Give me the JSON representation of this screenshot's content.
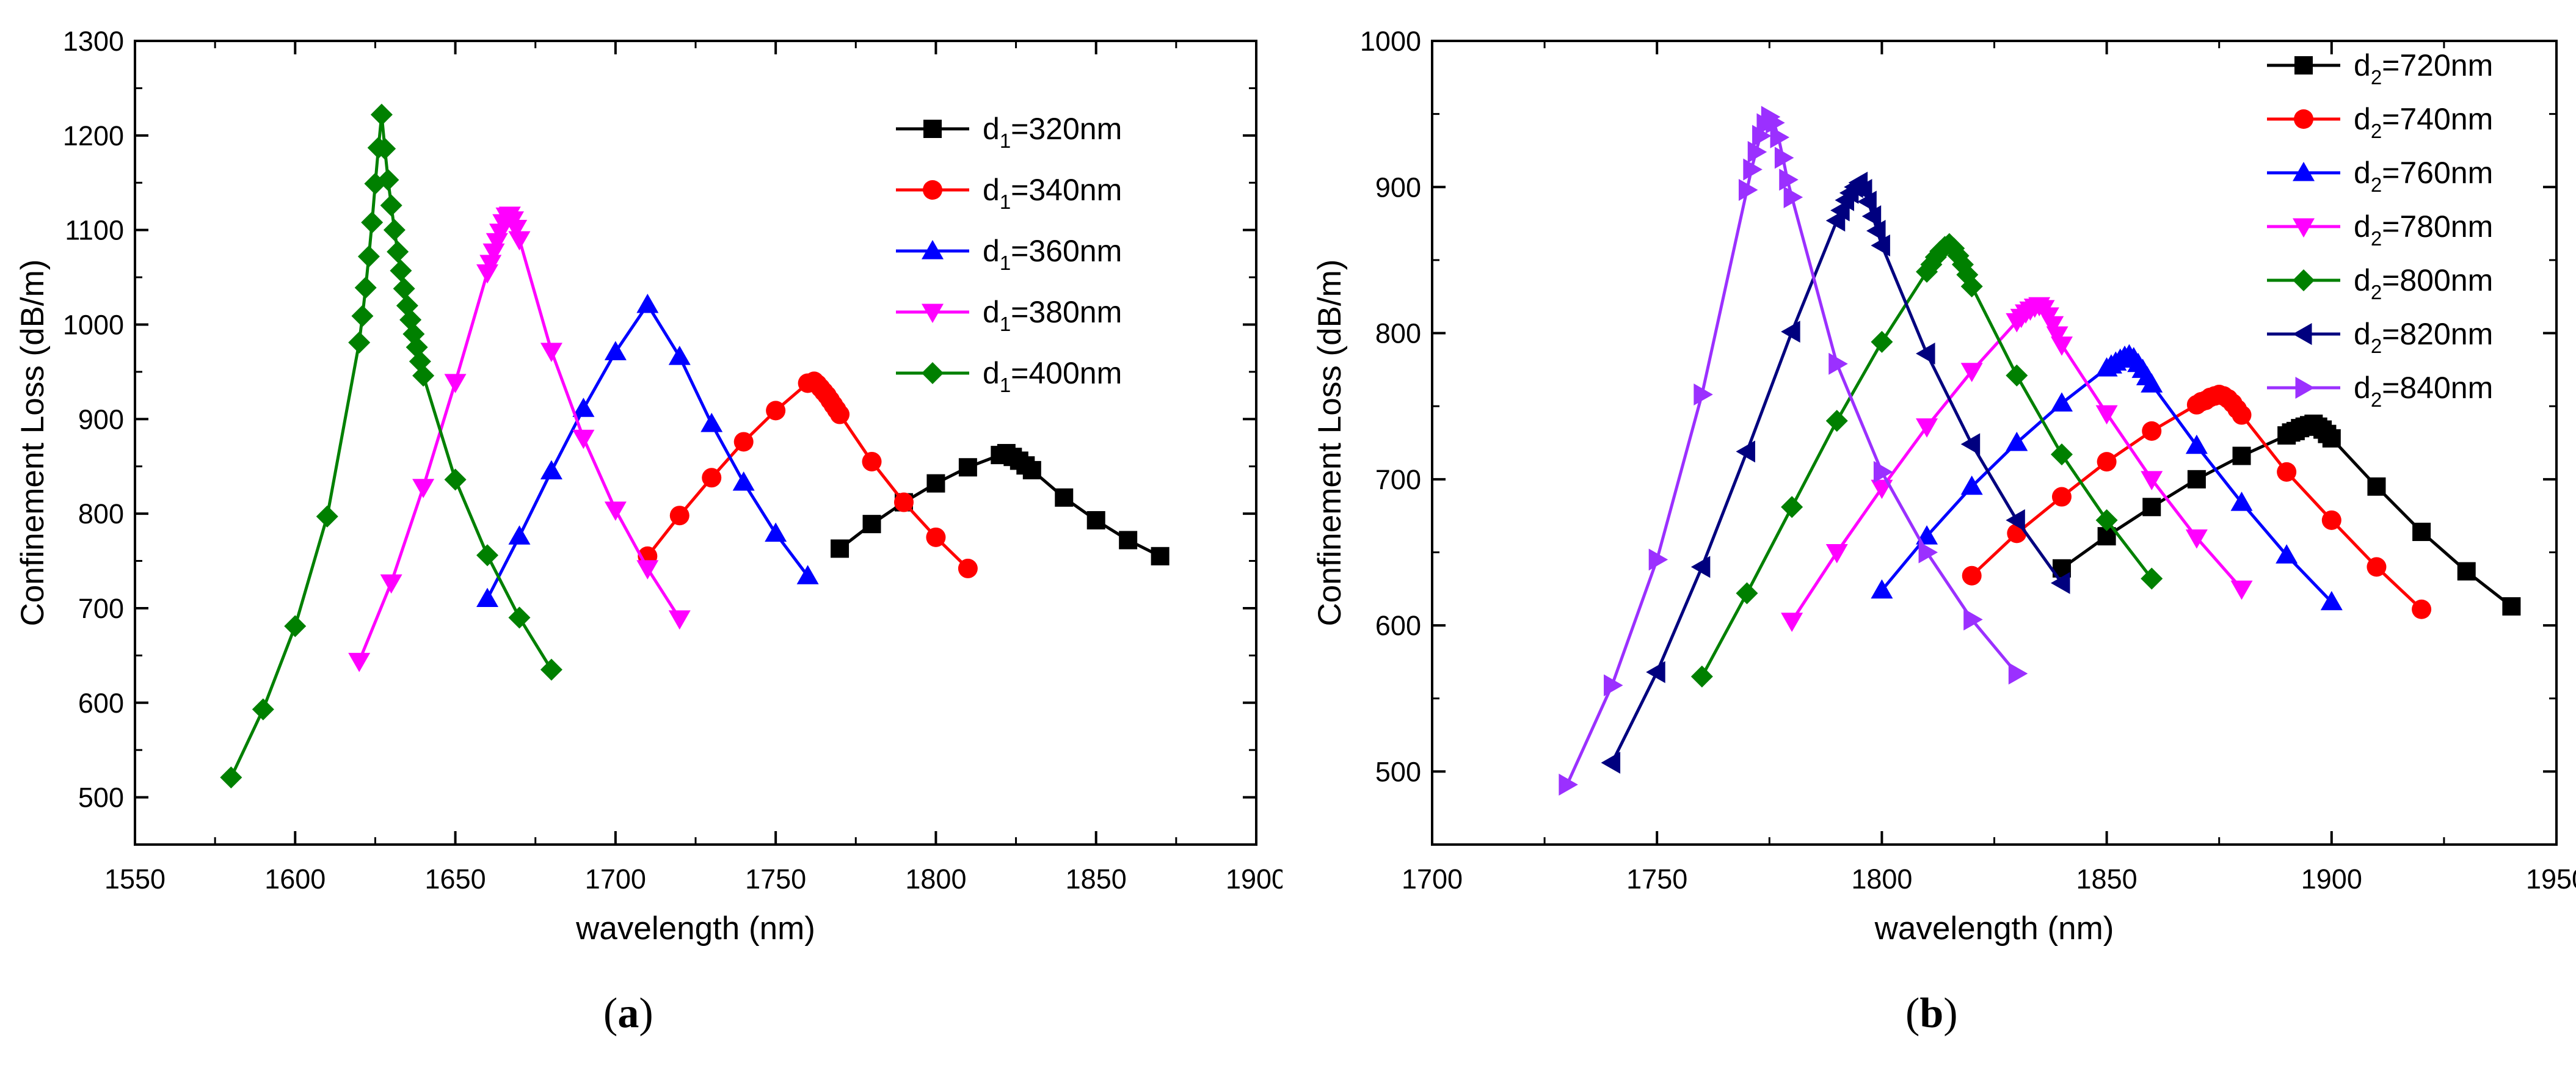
{
  "chart_data": [
    {
      "type": "line",
      "caption_letter": "a",
      "title": "",
      "xlabel": "wavelength (nm)",
      "ylabel": "Confinement  Loss (dB/m)",
      "xlim": [
        1550,
        1900
      ],
      "ylim": [
        450,
        1300
      ],
      "xticks": [
        1550,
        1600,
        1650,
        1700,
        1750,
        1800,
        1850,
        1900
      ],
      "yticks": [
        500,
        600,
        700,
        800,
        900,
        1000,
        1100,
        1200,
        1300
      ],
      "legend_position": "top-right",
      "series": [
        {
          "name": "d1=320nm",
          "label_base": "d",
          "label_sub": "1",
          "label_rest": "=320nm",
          "color": "#000000",
          "marker": "square",
          "x": [
            1770,
            1780,
            1790,
            1800,
            1810,
            1820,
            1822,
            1824,
            1826,
            1828,
            1830,
            1840,
            1850,
            1860,
            1870
          ],
          "y": [
            763,
            789,
            812,
            832,
            849,
            862,
            864,
            860,
            856,
            851,
            846,
            817,
            793,
            772,
            755
          ]
        },
        {
          "name": "d1=340nm",
          "label_base": "d",
          "label_sub": "1",
          "label_rest": "=340nm",
          "color": "#ff0000",
          "marker": "circle",
          "x": [
            1710,
            1720,
            1730,
            1740,
            1750,
            1760,
            1762,
            1763,
            1764,
            1765,
            1766,
            1767,
            1768,
            1769,
            1770,
            1780,
            1790,
            1800,
            1810
          ],
          "y": [
            755,
            798,
            838,
            876,
            909,
            938,
            940,
            937,
            933,
            929,
            925,
            920,
            915,
            910,
            905,
            855,
            812,
            775,
            742
          ]
        },
        {
          "name": "d1=360nm",
          "label_base": "d",
          "label_sub": "1",
          "label_rest": "=360nm",
          "color": "#0000ff",
          "marker": "triangle-up",
          "x": [
            1660,
            1670,
            1680,
            1690,
            1700,
            1710,
            1720,
            1730,
            1740,
            1750,
            1760
          ],
          "y": [
            710,
            776,
            845,
            911,
            971,
            1021,
            966,
            895,
            833,
            779,
            734
          ]
        },
        {
          "name": "d1=380nm",
          "label_base": "d",
          "label_sub": "1",
          "label_rest": "=380nm",
          "color": "#ff00ff",
          "marker": "triangle-down",
          "x": [
            1620,
            1630,
            1640,
            1650,
            1660,
            1661,
            1662,
            1663,
            1664,
            1665,
            1666,
            1667,
            1668,
            1669,
            1670,
            1680,
            1690,
            1700,
            1710,
            1720
          ],
          "y": [
            644,
            727,
            828,
            939,
            1055,
            1065,
            1077,
            1088,
            1098,
            1108,
            1115,
            1116,
            1111,
            1102,
            1090,
            972,
            880,
            804,
            742,
            689
          ]
        },
        {
          "name": "d1=400nm",
          "label_base": "d",
          "label_sub": "1",
          "label_rest": "=400nm",
          "color": "#008000",
          "marker": "diamond",
          "x": [
            1580,
            1590,
            1600,
            1610,
            1620,
            1621,
            1622,
            1623,
            1624,
            1625,
            1626,
            1627,
            1628,
            1629,
            1630,
            1631,
            1632,
            1633,
            1634,
            1635,
            1636,
            1637,
            1638,
            1639,
            1640,
            1650,
            1660,
            1670,
            1680
          ],
          "y": [
            521,
            593,
            681,
            797,
            981,
            1009,
            1039,
            1072,
            1108,
            1149,
            1187,
            1222,
            1186,
            1153,
            1126,
            1100,
            1077,
            1057,
            1038,
            1020,
            1005,
            990,
            976,
            961,
            946,
            836,
            756,
            690,
            635
          ]
        }
      ]
    },
    {
      "type": "line",
      "caption_letter": "b",
      "title": "",
      "xlabel": "wavelength (nm)",
      "ylabel": "Confinement  Loss (dB/m)",
      "xlim": [
        1700,
        1950
      ],
      "ylim": [
        450,
        1000
      ],
      "xticks": [
        1700,
        1750,
        1800,
        1850,
        1900,
        1950
      ],
      "yticks": [
        500,
        600,
        700,
        800,
        900,
        1000
      ],
      "legend_position": "top-right",
      "series": [
        {
          "name": "d2=720nm",
          "label_base": "d",
          "label_sub": "2",
          "label_rest": "=720nm",
          "color": "#000000",
          "marker": "square",
          "x": [
            1840,
            1850,
            1860,
            1870,
            1880,
            1890,
            1891,
            1892,
            1893,
            1894,
            1895,
            1896,
            1897,
            1898,
            1899,
            1900,
            1910,
            1920,
            1930,
            1940
          ],
          "y": [
            639,
            661,
            681,
            700,
            716,
            730,
            732,
            733,
            735,
            736,
            737,
            738,
            736,
            734,
            731,
            728,
            695,
            664,
            637,
            613
          ]
        },
        {
          "name": "d2=740nm",
          "label_base": "d",
          "label_sub": "2",
          "label_rest": "=740nm",
          "color": "#ff0000",
          "marker": "circle",
          "x": [
            1820,
            1830,
            1840,
            1850,
            1860,
            1870,
            1871,
            1872,
            1873,
            1874,
            1875,
            1876,
            1877,
            1878,
            1879,
            1880,
            1890,
            1900,
            1910,
            1920
          ],
          "y": [
            634,
            663,
            688,
            712,
            733,
            751,
            753,
            754,
            756,
            757,
            758,
            757,
            755,
            752,
            748,
            744,
            705,
            672,
            640,
            611
          ]
        },
        {
          "name": "d2=760nm",
          "label_base": "d",
          "label_sub": "2",
          "label_rest": "=760nm",
          "color": "#0000ff",
          "marker": "triangle-up",
          "x": [
            1800,
            1810,
            1820,
            1830,
            1840,
            1850,
            1851,
            1852,
            1853,
            1854,
            1855,
            1856,
            1857,
            1858,
            1859,
            1860,
            1870,
            1880,
            1890,
            1900
          ],
          "y": [
            624,
            661,
            695,
            725,
            752,
            776,
            778,
            780,
            782,
            784,
            785,
            783,
            779,
            775,
            770,
            765,
            723,
            684,
            648,
            616
          ]
        },
        {
          "name": "d2=780nm",
          "label_base": "d",
          "label_sub": "2",
          "label_rest": "=780nm",
          "color": "#ff00ff",
          "marker": "triangle-down",
          "x": [
            1780,
            1790,
            1800,
            1810,
            1820,
            1830,
            1831,
            1832,
            1833,
            1834,
            1835,
            1836,
            1837,
            1838,
            1839,
            1840,
            1850,
            1860,
            1870,
            1880
          ],
          "y": [
            603,
            650,
            694,
            736,
            774,
            808,
            811,
            814,
            816,
            818,
            819,
            817,
            812,
            806,
            799,
            792,
            745,
            700,
            660,
            625
          ]
        },
        {
          "name": "d2=800nm",
          "label_base": "d",
          "label_sub": "2",
          "label_rest": "=800nm",
          "color": "#008000",
          "marker": "diamond",
          "x": [
            1760,
            1770,
            1780,
            1790,
            1800,
            1810,
            1811,
            1812,
            1813,
            1814,
            1815,
            1816,
            1817,
            1818,
            1819,
            1820,
            1830,
            1840,
            1850,
            1860
          ],
          "y": [
            565,
            622,
            681,
            740,
            794,
            842,
            847,
            852,
            856,
            859,
            861,
            858,
            853,
            847,
            840,
            832,
            771,
            717,
            672,
            632
          ]
        },
        {
          "name": "d2=820nm",
          "label_base": "d",
          "label_sub": "2",
          "label_rest": "=820nm",
          "color": "#00007f",
          "marker": "triangle-left",
          "x": [
            1740,
            1750,
            1760,
            1770,
            1780,
            1790,
            1791,
            1792,
            1793,
            1794,
            1795,
            1796,
            1797,
            1798,
            1799,
            1800,
            1810,
            1820,
            1830,
            1840
          ],
          "y": [
            506,
            568,
            640,
            719,
            801,
            877,
            884,
            891,
            896,
            900,
            903,
            898,
            890,
            880,
            870,
            860,
            786,
            724,
            672,
            629
          ]
        },
        {
          "name": "d2=840nm",
          "label_base": "d",
          "label_sub": "2",
          "label_rest": "=840nm",
          "color": "#9b30ff",
          "marker": "triangle-right",
          "x": [
            1730,
            1740,
            1750,
            1760,
            1770,
            1771,
            1772,
            1773,
            1774,
            1775,
            1776,
            1777,
            1778,
            1779,
            1780,
            1790,
            1800,
            1810,
            1820,
            1830
          ],
          "y": [
            491,
            559,
            645,
            758,
            898,
            912,
            924,
            935,
            943,
            948,
            944,
            934,
            920,
            905,
            893,
            779,
            705,
            650,
            604,
            567
          ]
        }
      ]
    }
  ]
}
